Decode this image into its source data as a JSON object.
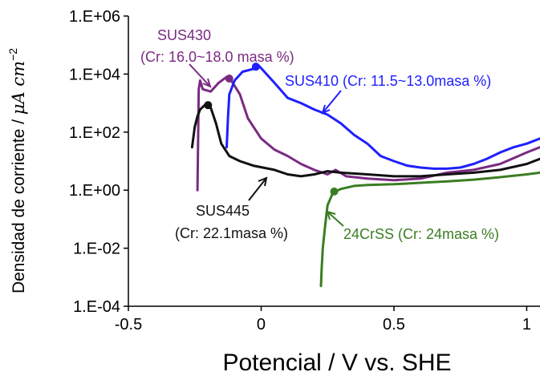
{
  "chart_data": {
    "type": "line",
    "title": "",
    "xlabel": "Potencial / V vs. SHE",
    "ylabel": "Densidad de corriente / ",
    "ylabel_unit": "μA cm",
    "ylabel_exp": "−2",
    "xlim": [
      -0.5,
      1.05
    ],
    "ylim": [
      0.0001,
      1000000
    ],
    "y_scale": "log",
    "grid": false,
    "legend": "none",
    "x_ticks": [
      -0.5,
      0,
      0.5,
      1
    ],
    "x_tick_labels": [
      "-0.5",
      "0",
      "0.5",
      "1"
    ],
    "y_ticks": [
      0.0001,
      0.01,
      1,
      100,
      10000,
      1000000
    ],
    "y_tick_labels": [
      "1.E-04",
      "1.E-02",
      "1.E+00",
      "1.E+02",
      "1.E+04",
      "1.E+06"
    ],
    "series": [
      {
        "name": "SUS430",
        "color": "#7b2a83",
        "x": [
          -0.24,
          -0.235,
          -0.23,
          -0.22,
          -0.19,
          -0.16,
          -0.13,
          -0.11,
          -0.08,
          -0.05,
          0.0,
          0.05,
          0.1,
          0.15,
          0.2,
          0.25,
          0.28,
          0.32,
          0.4,
          0.5,
          0.6,
          0.7,
          0.8,
          0.9,
          1.0,
          1.05
        ],
        "y": [
          1.0,
          3000,
          6000,
          3000,
          2500,
          5000,
          8000,
          5500,
          2000,
          300,
          60,
          25,
          15,
          8,
          5,
          3.5,
          5,
          3,
          2.5,
          2.2,
          2.5,
          4,
          5,
          8,
          20,
          30
        ]
      },
      {
        "name": "SUS410",
        "color": "#1f1fff",
        "x": [
          -0.13,
          -0.125,
          -0.12,
          -0.1,
          -0.07,
          -0.03,
          -0.01,
          0.02,
          0.05,
          0.1,
          0.15,
          0.2,
          0.25,
          0.3,
          0.35,
          0.4,
          0.45,
          0.5,
          0.55,
          0.6,
          0.65,
          0.7,
          0.75,
          0.8,
          0.85,
          0.9,
          0.95,
          1.0,
          1.05
        ],
        "y": [
          30,
          300,
          2000,
          6000,
          12000,
          15000,
          20000,
          10000,
          5000,
          1500,
          1000,
          600,
          400,
          200,
          80,
          40,
          15,
          10,
          7,
          6,
          5.5,
          5.5,
          6,
          8,
          12,
          20,
          30,
          40,
          60
        ]
      },
      {
        "name": "SUS445",
        "color": "#111111",
        "x": [
          -0.26,
          -0.25,
          -0.24,
          -0.23,
          -0.21,
          -0.19,
          -0.17,
          -0.15,
          -0.12,
          -0.08,
          -0.03,
          0.05,
          0.1,
          0.15,
          0.2,
          0.25,
          0.3,
          0.4,
          0.5,
          0.6,
          0.7,
          0.8,
          0.9,
          1.0,
          1.05
        ],
        "y": [
          30,
          150,
          350,
          600,
          900,
          700,
          200,
          40,
          15,
          10,
          7,
          5,
          3.5,
          3,
          3.5,
          4.5,
          4,
          3.5,
          3,
          3,
          3.5,
          4,
          5,
          8,
          12
        ]
      },
      {
        "name": "24CrSS",
        "color": "#3a7d22",
        "x": [
          0.225,
          0.228,
          0.232,
          0.24,
          0.25,
          0.27,
          0.3,
          0.35,
          0.4,
          0.5,
          0.6,
          0.7,
          0.8,
          0.9,
          1.0,
          1.05
        ],
        "y": [
          0.0005,
          0.002,
          0.01,
          0.05,
          0.3,
          0.8,
          1.1,
          1.4,
          1.5,
          1.6,
          1.8,
          2,
          2.3,
          2.8,
          3.5,
          4
        ]
      }
    ],
    "markers": [
      {
        "x": -0.12,
        "y": 7000,
        "color": "#7b2a83"
      },
      {
        "x": -0.02,
        "y": 18000,
        "color": "#1f1fff"
      },
      {
        "x": -0.2,
        "y": 850,
        "color": "#111111"
      },
      {
        "x": 0.275,
        "y": 0.9,
        "color": "#3a7d22"
      }
    ],
    "annotations": [
      {
        "lines": [
          "SUS430",
          "(Cr: 16.0~18.0 masa %)"
        ],
        "color": "#7b2a83"
      },
      {
        "lines": [
          "SUS410 (Cr: 11.5~13.0masa %)"
        ],
        "color": "#1f1fff"
      },
      {
        "lines": [
          "SUS445",
          "(Cr: 22.1masa %)"
        ],
        "color": "#111111"
      },
      {
        "lines": [
          "24CrSS (Cr: 24masa %)"
        ],
        "color": "#3a7d22"
      }
    ]
  }
}
